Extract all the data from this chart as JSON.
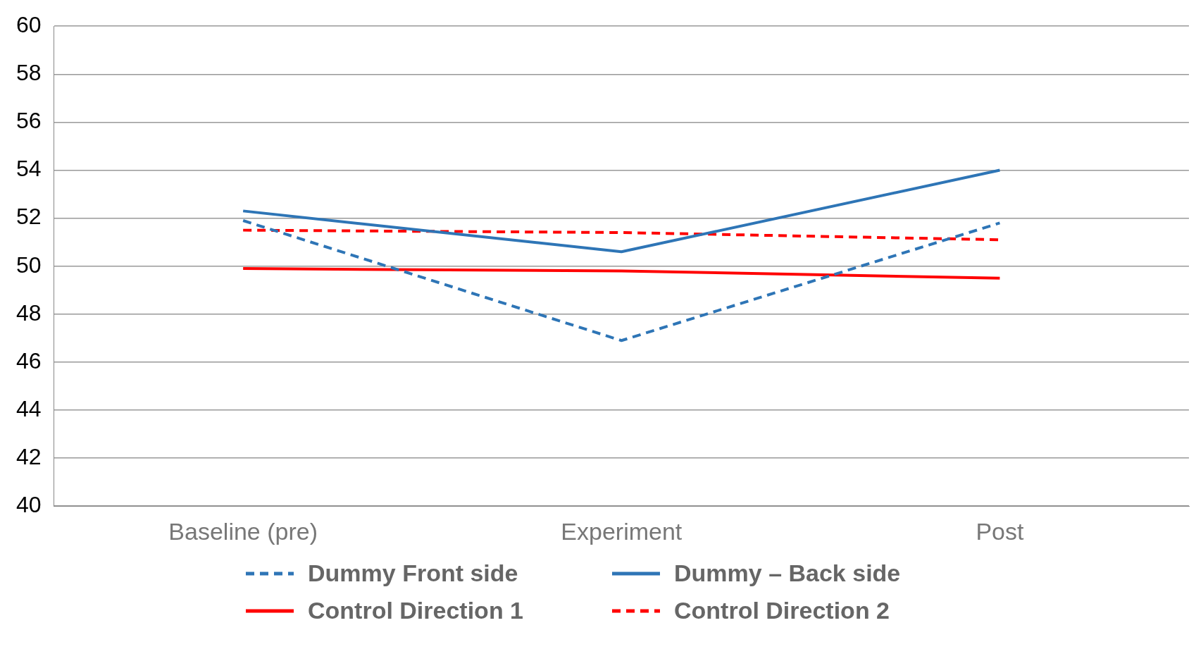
{
  "chart_data": {
    "type": "line",
    "categories": [
      "Baseline (pre)",
      "Experiment",
      "Post"
    ],
    "series": [
      {
        "name": "Dummy Front side",
        "color": "#2e75b6",
        "line_style": "dashed",
        "values": [
          51.9,
          46.9,
          51.8
        ]
      },
      {
        "name": "Dummy – Back side",
        "color": "#2e75b6",
        "line_style": "solid",
        "values": [
          52.3,
          50.6,
          54.0
        ]
      },
      {
        "name": "Control Direction 1",
        "color": "#ff0000",
        "line_style": "solid",
        "values": [
          49.9,
          49.8,
          49.5
        ]
      },
      {
        "name": "Control Direction 2",
        "color": "#ff0000",
        "line_style": "dashed",
        "values": [
          51.5,
          51.4,
          51.1
        ]
      }
    ],
    "ylim": [
      40,
      60
    ],
    "yticks": [
      40,
      42,
      44,
      46,
      48,
      50,
      52,
      54,
      56,
      58,
      60
    ],
    "grid": "y",
    "legend": "bottom",
    "marker": "none"
  }
}
